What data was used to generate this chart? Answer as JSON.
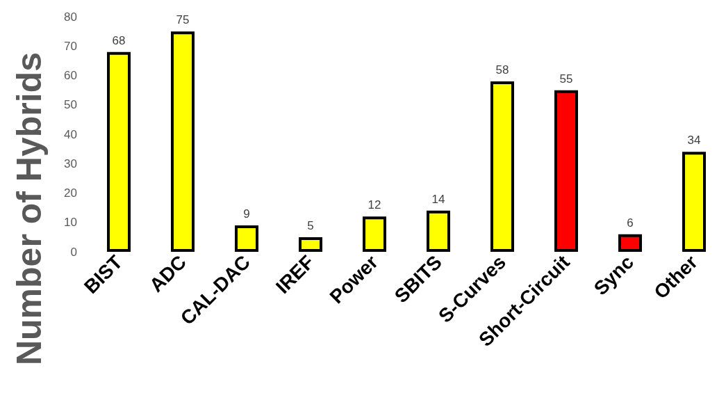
{
  "chart_data": {
    "type": "bar",
    "ylabel": "Number of Hybrids",
    "categories": [
      "BIST",
      "ADC",
      "CAL-DAC",
      "IREF",
      "Power",
      "SBITS",
      "S-Curves",
      "Short-Circuit",
      "Sync",
      "Other"
    ],
    "values": [
      68,
      75,
      9,
      5,
      12,
      14,
      58,
      55,
      6,
      34
    ],
    "colors": [
      "#ffff00",
      "#ffff00",
      "#ffff00",
      "#ffff00",
      "#ffff00",
      "#ffff00",
      "#ffff00",
      "#ff0000",
      "#ff0000",
      "#ffff00"
    ],
    "ylim": [
      0,
      80
    ],
    "yticks": [
      0,
      10,
      20,
      30,
      40,
      50,
      60,
      70,
      80
    ],
    "grid": false,
    "data_labels": true
  }
}
